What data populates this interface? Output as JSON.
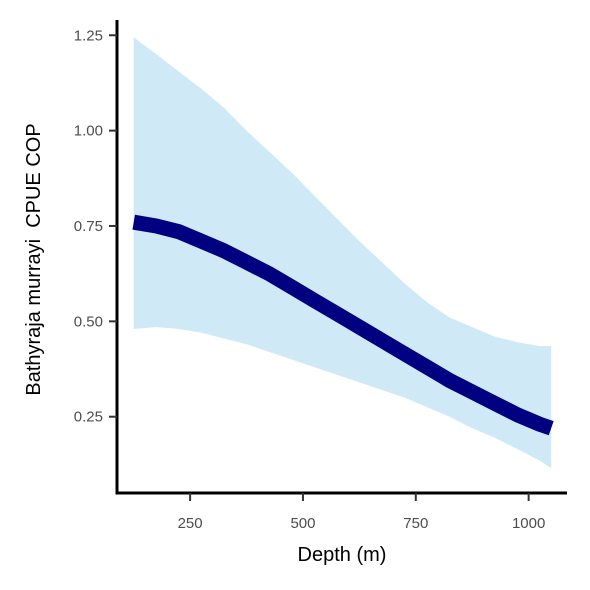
{
  "chart_data": {
    "type": "line",
    "title": "",
    "xlabel": "Depth (m)",
    "ylabel": "Bathyraja murrayi  CPUE COP",
    "xlim": [
      88,
      1085
    ],
    "ylim": [
      0.05,
      1.29
    ],
    "x_ticks": [
      250,
      500,
      750,
      1000
    ],
    "x_tick_labels": [
      "250",
      "500",
      "750",
      "1000"
    ],
    "y_ticks": [
      0.25,
      0.5,
      0.75,
      1.0,
      1.25
    ],
    "y_tick_labels": [
      "0.25",
      "0.50",
      "0.75",
      "1.00",
      "1.25"
    ],
    "grid": false,
    "colors": {
      "line": "#000080",
      "ribbon": "#cfeaf6",
      "axis": "#000000",
      "tick_label": "#4d4d4d"
    },
    "series": [
      {
        "x": [
          125,
          175,
          225,
          275,
          325,
          375,
          425,
          475,
          525,
          575,
          625,
          675,
          725,
          775,
          825,
          875,
          925,
          975,
          1025,
          1050
        ],
        "y": [
          0.76,
          0.75,
          0.735,
          0.71,
          0.685,
          0.655,
          0.625,
          0.59,
          0.555,
          0.52,
          0.485,
          0.45,
          0.415,
          0.38,
          0.345,
          0.315,
          0.285,
          0.255,
          0.23,
          0.22
        ],
        "lower": [
          0.48,
          0.485,
          0.48,
          0.47,
          0.455,
          0.44,
          0.42,
          0.4,
          0.38,
          0.36,
          0.34,
          0.32,
          0.3,
          0.275,
          0.25,
          0.22,
          0.195,
          0.165,
          0.135,
          0.115
        ],
        "upper": [
          1.245,
          1.2,
          1.155,
          1.11,
          1.06,
          1.0,
          0.945,
          0.89,
          0.83,
          0.77,
          0.71,
          0.655,
          0.6,
          0.55,
          0.51,
          0.485,
          0.46,
          0.445,
          0.435,
          0.435
        ]
      }
    ]
  }
}
